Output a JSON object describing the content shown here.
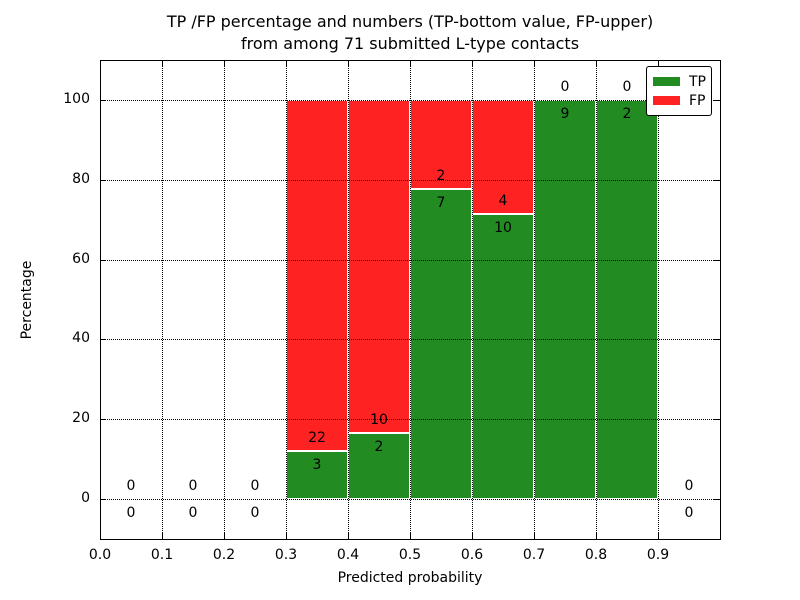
{
  "title": {
    "line1": "TP /FP percentage and numbers (TP-bottom value, FP-upper)",
    "line2": "from among 71 submitted L-type contacts"
  },
  "axes": {
    "xlabel": "Predicted probability",
    "ylabel": "Percentage",
    "x_tick_labels": [
      "0.0",
      "0.1",
      "0.2",
      "0.3",
      "0.4",
      "0.5",
      "0.6",
      "0.7",
      "0.8",
      "0.9"
    ],
    "y_tick_labels": [
      "0",
      "20",
      "40",
      "60",
      "80",
      "100"
    ]
  },
  "chart_data": {
    "type": "bar",
    "stacked": true,
    "title": "TP /FP percentage and numbers (TP-bottom value, FP-upper) from among 71 submitted L-type contacts",
    "xlabel": "Predicted probability",
    "ylabel": "Percentage",
    "xlim": [
      0.0,
      1.0
    ],
    "ylim": [
      -10,
      110
    ],
    "grid": true,
    "legend_position": "upper right",
    "series": [
      {
        "name": "TP",
        "color": "#228b22"
      },
      {
        "name": "FP",
        "color": "#ff2222"
      }
    ],
    "bins": [
      {
        "x_start": 0.0,
        "x_end": 0.1,
        "tp": 0,
        "fp": 0,
        "tp_pct": null
      },
      {
        "x_start": 0.1,
        "x_end": 0.2,
        "tp": 0,
        "fp": 0,
        "tp_pct": null
      },
      {
        "x_start": 0.2,
        "x_end": 0.3,
        "tp": 0,
        "fp": 0,
        "tp_pct": null
      },
      {
        "x_start": 0.3,
        "x_end": 0.4,
        "tp": 3,
        "fp": 22,
        "tp_pct": 12.0
      },
      {
        "x_start": 0.4,
        "x_end": 0.5,
        "tp": 2,
        "fp": 10,
        "tp_pct": 16.67
      },
      {
        "x_start": 0.5,
        "x_end": 0.6,
        "tp": 7,
        "fp": 2,
        "tp_pct": 77.78
      },
      {
        "x_start": 0.6,
        "x_end": 0.7,
        "tp": 10,
        "fp": 4,
        "tp_pct": 71.43
      },
      {
        "x_start": 0.7,
        "x_end": 0.8,
        "tp": 9,
        "fp": 0,
        "tp_pct": 100.0
      },
      {
        "x_start": 0.8,
        "x_end": 0.9,
        "tp": 2,
        "fp": 0,
        "tp_pct": 100.0
      },
      {
        "x_start": 0.9,
        "x_end": 1.0,
        "tp": 0,
        "fp": 0,
        "tp_pct": null
      }
    ]
  }
}
